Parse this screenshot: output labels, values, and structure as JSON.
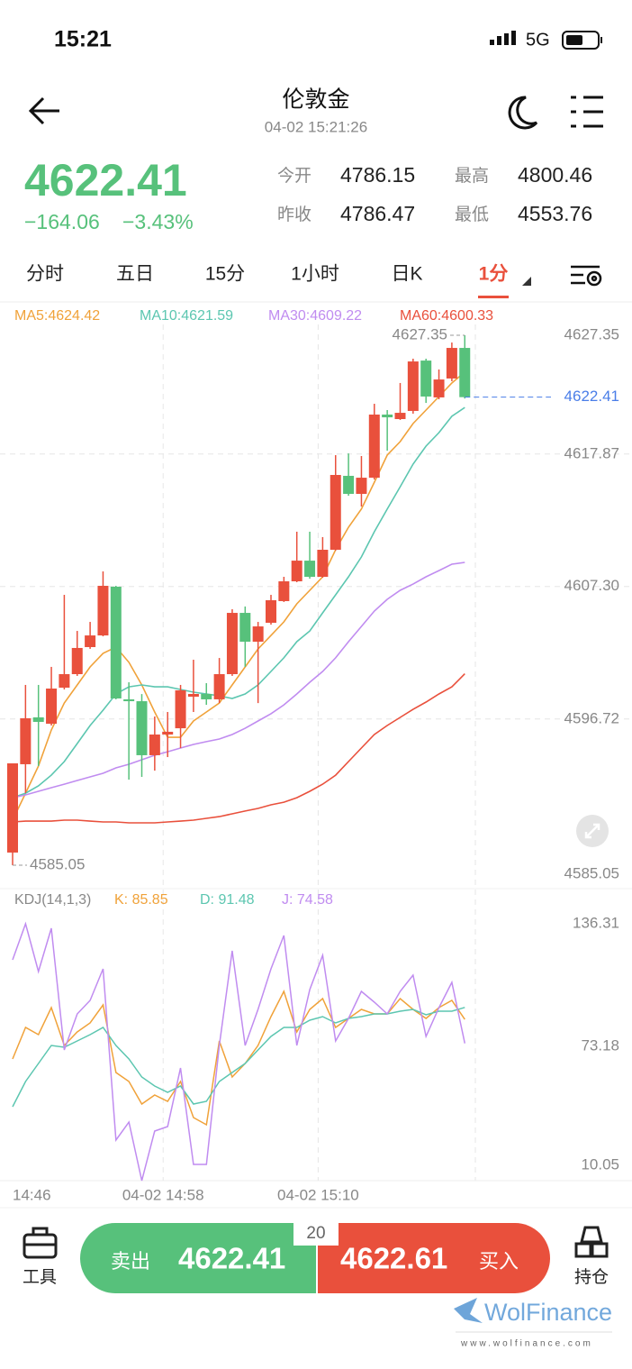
{
  "status": {
    "time": "15:21",
    "network": "5G"
  },
  "header": {
    "title": "伦敦金",
    "datetime": "04-02 15:21:26"
  },
  "quote": {
    "price": "4622.41",
    "change": "−164.06",
    "change_pct": "−3.43%",
    "stats": [
      {
        "label": "今开",
        "value": "4786.15"
      },
      {
        "label": "最高",
        "value": "4800.46"
      },
      {
        "label": "昨收",
        "value": "4786.47"
      },
      {
        "label": "最低",
        "value": "4553.76"
      }
    ]
  },
  "tabs": {
    "items": [
      "分时",
      "五日",
      "15分",
      "1小时",
      "日K",
      "1分"
    ],
    "active": 5
  },
  "chart_data": [
    {
      "type": "candlestick",
      "up_color": "#e9503c",
      "down_color": "#57c17b",
      "categories": [
        "14:46",
        null,
        null,
        null,
        null,
        null,
        null,
        null,
        null,
        null,
        null,
        null,
        "04-02 14:58",
        null,
        null,
        null,
        null,
        null,
        null,
        null,
        null,
        null,
        null,
        null,
        "04-02 15:10",
        null,
        null,
        null,
        null,
        null,
        null,
        null,
        null,
        null,
        null,
        null
      ],
      "open": [
        4586.06,
        4593.11,
        4596.85,
        4596.34,
        4599.22,
        4600.3,
        4602.46,
        4603.39,
        4607.28,
        4598.29,
        4598.14,
        4593.83,
        4595.48,
        4595.98,
        4598.5,
        4598.72,
        4598.29,
        4600.3,
        4605.19,
        4602.89,
        4604.4,
        4606.13,
        4607.71,
        4609.36,
        4608.07,
        4610.23,
        4616.13,
        4614.69,
        4615.98,
        4621.02,
        4620.66,
        4621.31,
        4625.33,
        4622.39,
        4623.9,
        4626.34
      ],
      "high": [
        4593.18,
        4599.44,
        4599.44,
        4600.88,
        4606.63,
        4603.75,
        4604.47,
        4608.5,
        4607.35,
        4599.65,
        4598.71,
        4596.92,
        4597.28,
        4599.44,
        4601.45,
        4599.58,
        4601.59,
        4605.48,
        4605.7,
        4604.47,
        4606.63,
        4608.07,
        4611.67,
        4611.67,
        4611.24,
        4617.78,
        4617.92,
        4617.71,
        4621.88,
        4621.38,
        4623.54,
        4625.48,
        4625.48,
        4624.62,
        4626.77,
        4627.35
      ],
      "low": [
        4585.05,
        4590.8,
        4592.96,
        4596.2,
        4599.08,
        4600.16,
        4602.32,
        4603.32,
        4598.29,
        4591.88,
        4592.1,
        4592.6,
        4593.68,
        4594.4,
        4597.28,
        4597.85,
        4597.99,
        4600.16,
        4600.88,
        4597.99,
        4604.25,
        4606.06,
        4607.64,
        4607.92,
        4608.0,
        4610.16,
        4614.54,
        4613.68,
        4615.84,
        4618.14,
        4620.59,
        4621.09,
        4621.95,
        4622.24,
        4623.68,
        4622.3
      ],
      "close": [
        4593.18,
        4596.78,
        4596.49,
        4599.15,
        4600.3,
        4602.39,
        4603.39,
        4607.35,
        4598.36,
        4598.14,
        4593.83,
        4595.48,
        4595.7,
        4599.01,
        4598.72,
        4598.29,
        4600.3,
        4605.19,
        4602.89,
        4604.11,
        4606.2,
        4607.71,
        4609.36,
        4608.07,
        4610.23,
        4616.2,
        4614.69,
        4615.98,
        4621.02,
        4620.8,
        4621.16,
        4625.26,
        4622.46,
        4623.82,
        4626.34,
        4622.41
      ],
      "ylim": [
        4585.05,
        4627.35
      ],
      "yticks": [
        4627.35,
        4617.87,
        {
          "value": 4607.3,
          "label": "4607.30"
        },
        4596.72,
        4585.05
      ],
      "last_line_color": "#4a7ee8",
      "series": [
        {
          "name": "MA5:4624.42",
          "color": "#f0a23a",
          "values": [
            4588.65,
            4590.8,
            4592.96,
            4595.84,
            4598.0,
            4599.44,
            4600.88,
            4601.96,
            4602.46,
            4601.24,
            4599.44,
            4597.28,
            4595.26,
            4595.26,
            4596.56,
            4597.28,
            4598.0,
            4599.44,
            4600.88,
            4602.31,
            4603.39,
            4604.47,
            4605.91,
            4606.99,
            4608.07,
            4610.23,
            4612.03,
            4613.47,
            4615.62,
            4617.78,
            4618.86,
            4620.3,
            4621.38,
            4622.46,
            4623.54,
            4624.42
          ]
        },
        {
          "name": "MA10:4621.59",
          "color": "#5cc6b0",
          "values": [
            4590.44,
            4590.8,
            4591.38,
            4592.24,
            4593.32,
            4594.76,
            4596.2,
            4597.42,
            4598.72,
            4599.29,
            4599.44,
            4599.29,
            4599.29,
            4599.08,
            4598.86,
            4598.72,
            4598.57,
            4598.36,
            4598.72,
            4599.44,
            4600.52,
            4601.6,
            4602.89,
            4603.75,
            4605.19,
            4606.63,
            4608.07,
            4609.65,
            4611.67,
            4613.47,
            4615.26,
            4617.06,
            4618.5,
            4619.58,
            4620.88,
            4621.59
          ]
        },
        {
          "name": "MA30:4609.22",
          "color": "#c08cf0",
          "values": [
            4590.44,
            4590.66,
            4590.95,
            4591.24,
            4591.52,
            4591.81,
            4592.1,
            4592.39,
            4592.82,
            4593.11,
            4593.47,
            4593.83,
            4594.11,
            4594.4,
            4594.69,
            4594.91,
            4595.12,
            4595.48,
            4595.98,
            4596.56,
            4597.14,
            4597.85,
            4598.72,
            4599.65,
            4600.52,
            4601.6,
            4602.89,
            4604.11,
            4605.34,
            4606.27,
            4606.99,
            4607.49,
            4608.07,
            4608.57,
            4609.08,
            4609.22
          ]
        },
        {
          "name": "MA60:4600.33",
          "color": "#e9503c",
          "values": [
            4588.5,
            4588.57,
            4588.57,
            4588.57,
            4588.65,
            4588.65,
            4588.57,
            4588.5,
            4588.5,
            4588.43,
            4588.43,
            4588.43,
            4588.5,
            4588.57,
            4588.65,
            4588.79,
            4588.93,
            4589.15,
            4589.37,
            4589.58,
            4589.87,
            4590.08,
            4590.44,
            4590.95,
            4591.52,
            4592.24,
            4593.32,
            4594.4,
            4595.48,
            4596.2,
            4596.85,
            4597.49,
            4598.07,
            4598.72,
            4599.29,
            4600.33
          ]
        }
      ]
    },
    {
      "type": "line",
      "title": "KDJ(14,1,3)",
      "ylim": [
        10.05,
        136.31
      ],
      "yticks": [
        10.05,
        73.18,
        136.31
      ],
      "series": [
        {
          "name": "K: 85.85",
          "color": "#f0a23a",
          "values": [
            67.25,
            82.08,
            78.69,
            91.4,
            73.6,
            79.96,
            84.19,
            92.67,
            60.89,
            56.65,
            46.06,
            50.3,
            47.33,
            56.65,
            39.71,
            36.32,
            75.72,
            58.77,
            65.13,
            73.6,
            87.16,
            99.02,
            79.96,
            90.55,
            95.63,
            82.08,
            86.31,
            90.55,
            88.43,
            88.43,
            95.63,
            90.55,
            86.31,
            91.4,
            94.79,
            85.85
          ]
        },
        {
          "name": "D: 91.48",
          "color": "#5cc6b0",
          "values": [
            44.79,
            56.65,
            65.13,
            73.6,
            72.75,
            75.72,
            78.69,
            82.08,
            73.6,
            67.25,
            58.77,
            54.54,
            51.57,
            54.54,
            46.06,
            47.33,
            56.65,
            60.89,
            65.13,
            71.48,
            77.84,
            82.08,
            82.08,
            85.47,
            87.16,
            84.19,
            86.31,
            87.16,
            88.43,
            88.43,
            89.7,
            90.55,
            88.01,
            89.7,
            89.7,
            91.48
          ]
        },
        {
          "name": "J: 74.58",
          "color": "#c08cf0",
          "values": [
            113.85,
            130.8,
            108.35,
            128.68,
            71.48,
            88.43,
            94.79,
            109.62,
            29.11,
            37.59,
            10.05,
            33.35,
            35.47,
            63.01,
            17.67,
            17.67,
            73.6,
            118.09,
            73.6,
            90.55,
            109.62,
            125.29,
            73.6,
            99.87,
            115.97,
            75.72,
            86.31,
            99.02,
            93.94,
            88.43,
            99.02,
            106.65,
            77.84,
            91.4,
            103.26,
            74.58
          ]
        }
      ]
    }
  ],
  "bottom": {
    "tools": "工具",
    "sell_label": "卖出",
    "sell_price": "4622.41",
    "spread": "20",
    "buy_price": "4622.61",
    "buy_label": "买入",
    "positions": "持仓"
  },
  "watermark": {
    "brand": "WolFinance",
    "url": "www.wolfinance.com"
  }
}
